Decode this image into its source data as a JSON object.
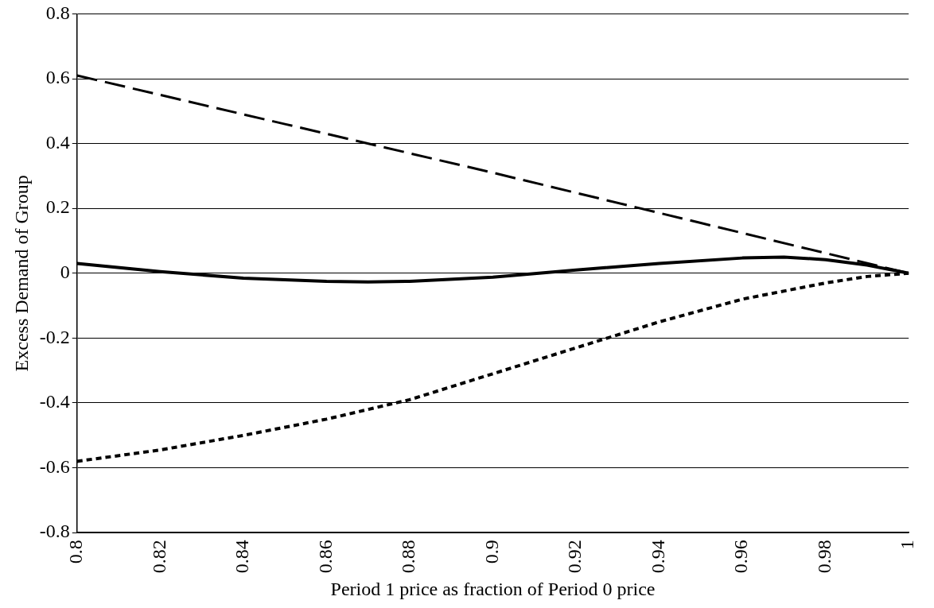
{
  "chart_data": {
    "type": "line",
    "xlabel": "Period 1 price as fraction of Period 0 price",
    "ylabel": "Excess Demand of Group",
    "xlim": [
      0.8,
      1
    ],
    "xticks": [
      0.8,
      0.82,
      0.84,
      0.86,
      0.88,
      0.9,
      0.92,
      0.94,
      0.96,
      0.98,
      1
    ],
    "ylim": [
      -0.8,
      0.8
    ],
    "yticks": [
      -0.8,
      -0.6,
      -0.4,
      -0.2,
      0,
      0.2,
      0.4,
      0.6,
      0.8
    ],
    "grid": "y",
    "legend": false,
    "marker": "none",
    "series": [
      {
        "color": "#000000",
        "line_style": "dashed",
        "x": [
          0.8,
          0.85,
          0.9,
          0.95,
          1
        ],
        "values": [
          0.61,
          0.46,
          0.31,
          0.155,
          0
        ]
      },
      {
        "color": "#000000",
        "line_style": "solid",
        "x": [
          0.8,
          0.82,
          0.84,
          0.86,
          0.87,
          0.88,
          0.9,
          0.92,
          0.94,
          0.96,
          0.97,
          0.98,
          0.99,
          1
        ],
        "values": [
          0.03,
          0.005,
          -0.015,
          -0.025,
          -0.027,
          -0.025,
          -0.012,
          0.01,
          0.03,
          0.047,
          0.05,
          0.042,
          0.025,
          0
        ]
      },
      {
        "color": "#000000",
        "line_style": "dotted",
        "x": [
          0.8,
          0.82,
          0.84,
          0.86,
          0.88,
          0.9,
          0.92,
          0.94,
          0.96,
          0.98,
          0.99,
          1
        ],
        "values": [
          -0.58,
          -0.545,
          -0.5,
          -0.45,
          -0.39,
          -0.31,
          -0.23,
          -0.15,
          -0.08,
          -0.03,
          -0.01,
          0
        ]
      }
    ]
  }
}
